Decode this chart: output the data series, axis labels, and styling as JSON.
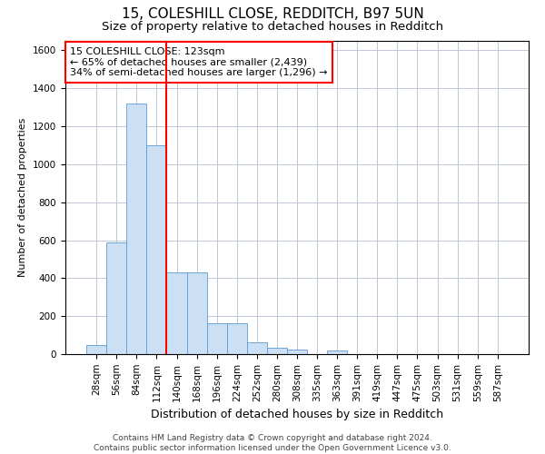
{
  "title1": "15, COLESHILL CLOSE, REDDITCH, B97 5UN",
  "title2": "Size of property relative to detached houses in Redditch",
  "xlabel": "Distribution of detached houses by size in Redditch",
  "ylabel": "Number of detached properties",
  "footnote": "Contains HM Land Registry data © Crown copyright and database right 2024.\nContains public sector information licensed under the Open Government Licence v3.0.",
  "bin_labels": [
    "28sqm",
    "56sqm",
    "84sqm",
    "112sqm",
    "140sqm",
    "168sqm",
    "196sqm",
    "224sqm",
    "252sqm",
    "280sqm",
    "308sqm",
    "335sqm",
    "363sqm",
    "391sqm",
    "419sqm",
    "447sqm",
    "475sqm",
    "503sqm",
    "531sqm",
    "559sqm",
    "587sqm"
  ],
  "bar_values": [
    50,
    590,
    1320,
    1100,
    430,
    430,
    165,
    165,
    60,
    35,
    25,
    0,
    20,
    0,
    0,
    0,
    0,
    0,
    0,
    0,
    0
  ],
  "bar_color": "#cce0f5",
  "bar_edge_color": "#5b9bd5",
  "vline_x_index": 3.5,
  "vline_color": "red",
  "annotation_line1": "15 COLESHILL CLOSE: 123sqm",
  "annotation_line2": "← 65% of detached houses are smaller (2,439)",
  "annotation_line3": "34% of semi-detached houses are larger (1,296) →",
  "annotation_box_color": "white",
  "annotation_box_edge_color": "red",
  "ylim": [
    0,
    1650
  ],
  "yticks": [
    0,
    200,
    400,
    600,
    800,
    1000,
    1200,
    1400,
    1600
  ],
  "background_color": "#ffffff",
  "grid_color": "#c0c8d8",
  "title1_fontsize": 11,
  "title2_fontsize": 9.5,
  "xlabel_fontsize": 9,
  "ylabel_fontsize": 8,
  "tick_fontsize": 7.5,
  "annotation_fontsize": 8,
  "footnote_fontsize": 6.5
}
